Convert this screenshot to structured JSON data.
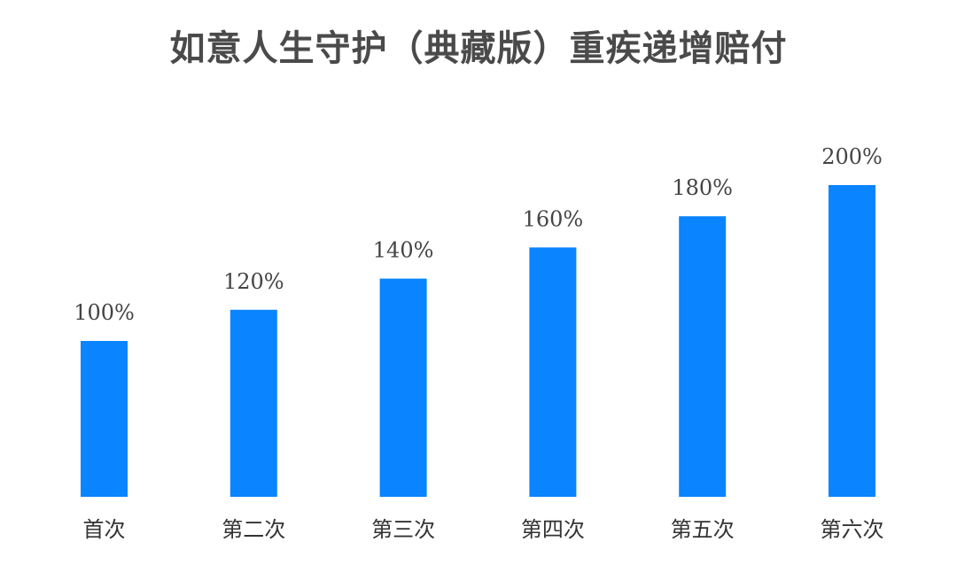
{
  "chart_data": {
    "type": "bar",
    "title": "如意人生守护（典藏版）重疾递增赔付",
    "xlabel": "",
    "ylabel": "",
    "categories": [
      "首次",
      "第二次",
      "第三次",
      "第四次",
      "第五次",
      "第六次"
    ],
    "values": [
      100,
      120,
      140,
      160,
      180,
      200
    ],
    "value_labels": [
      "100%",
      "120%",
      "140%",
      "160%",
      "180%",
      "200%"
    ],
    "ylim": [
      0,
      200
    ],
    "grid": false,
    "legend": "none",
    "colors": {
      "bar": "#0a84ff",
      "title": "#4a4a4a",
      "text": "#444444"
    }
  }
}
